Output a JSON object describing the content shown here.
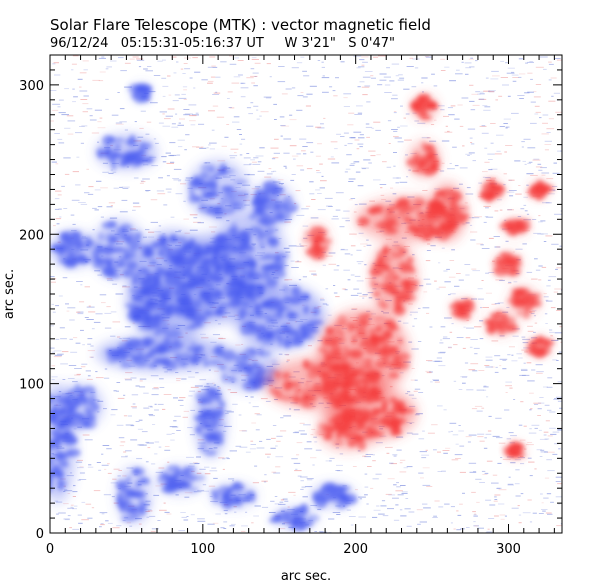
{
  "title": "Solar Flare Telescope (MTK) : vector magnetic field",
  "subtitle": "96/12/24   05:15:31-05:16:37 UT     W 3'21\"   S 0'47\"",
  "chart_data": {
    "type": "heatmap",
    "title": "Solar Flare Telescope (MTK) : vector magnetic field",
    "xlabel": "arc sec.",
    "ylabel": "arc sec.",
    "xlim": [
      0,
      335
    ],
    "ylim": [
      0,
      320
    ],
    "x_ticks": [
      0,
      100,
      200,
      300
    ],
    "y_ticks": [
      0,
      100,
      200,
      300
    ],
    "x_minor_step": 10,
    "y_minor_step": 10,
    "colors": {
      "negative": "#4a5cf0",
      "positive": "#f53e3e",
      "noise_neg": "#8090e0",
      "noise_pos": "#f0a0a0"
    },
    "negative_regions": [
      {
        "x": 105,
        "y": 170,
        "rx": 32,
        "ry": 30,
        "s": 1.0
      },
      {
        "x": 80,
        "y": 165,
        "rx": 28,
        "ry": 38,
        "s": 0.9
      },
      {
        "x": 150,
        "y": 145,
        "rx": 30,
        "ry": 22,
        "s": 1.0
      },
      {
        "x": 75,
        "y": 120,
        "rx": 45,
        "ry": 12,
        "s": 0.9
      },
      {
        "x": 130,
        "y": 185,
        "rx": 25,
        "ry": 30,
        "s": 0.8
      },
      {
        "x": 65,
        "y": 155,
        "rx": 15,
        "ry": 20,
        "s": 0.8
      },
      {
        "x": 15,
        "y": 190,
        "rx": 15,
        "ry": 12,
        "s": 0.9
      },
      {
        "x": 45,
        "y": 190,
        "rx": 18,
        "ry": 20,
        "s": 0.7
      },
      {
        "x": 110,
        "y": 230,
        "rx": 20,
        "ry": 20,
        "s": 0.7
      },
      {
        "x": 50,
        "y": 255,
        "rx": 20,
        "ry": 12,
        "s": 0.8
      },
      {
        "x": 105,
        "y": 75,
        "rx": 10,
        "ry": 25,
        "s": 0.9
      },
      {
        "x": 130,
        "y": 110,
        "rx": 20,
        "ry": 15,
        "s": 0.7
      },
      {
        "x": 5,
        "y": 60,
        "rx": 12,
        "ry": 40,
        "s": 0.8
      },
      {
        "x": 20,
        "y": 85,
        "rx": 15,
        "ry": 15,
        "s": 0.7
      },
      {
        "x": 185,
        "y": 25,
        "rx": 14,
        "ry": 8,
        "s": 0.8
      },
      {
        "x": 120,
        "y": 25,
        "rx": 15,
        "ry": 8,
        "s": 0.7
      },
      {
        "x": 55,
        "y": 25,
        "rx": 12,
        "ry": 20,
        "s": 0.6
      },
      {
        "x": 85,
        "y": 35,
        "rx": 15,
        "ry": 10,
        "s": 0.6
      },
      {
        "x": 60,
        "y": 295,
        "rx": 6,
        "ry": 6,
        "s": 0.5
      },
      {
        "x": 145,
        "y": 220,
        "rx": 15,
        "ry": 15,
        "s": 0.6
      },
      {
        "x": 160,
        "y": 10,
        "rx": 15,
        "ry": 8,
        "s": 0.5
      }
    ],
    "positive_regions": [
      {
        "x": 205,
        "y": 120,
        "rx": 30,
        "ry": 30,
        "s": 1.0
      },
      {
        "x": 180,
        "y": 100,
        "rx": 40,
        "ry": 18,
        "s": 0.9
      },
      {
        "x": 210,
        "y": 80,
        "rx": 30,
        "ry": 18,
        "s": 1.0
      },
      {
        "x": 225,
        "y": 170,
        "rx": 15,
        "ry": 25,
        "s": 0.9
      },
      {
        "x": 235,
        "y": 210,
        "rx": 35,
        "ry": 15,
        "s": 0.9
      },
      {
        "x": 260,
        "y": 215,
        "rx": 12,
        "ry": 20,
        "s": 0.9
      },
      {
        "x": 245,
        "y": 250,
        "rx": 10,
        "ry": 12,
        "s": 0.9
      },
      {
        "x": 245,
        "y": 285,
        "rx": 8,
        "ry": 8,
        "s": 0.9
      },
      {
        "x": 195,
        "y": 70,
        "rx": 20,
        "ry": 15,
        "s": 0.8
      },
      {
        "x": 175,
        "y": 195,
        "rx": 8,
        "ry": 12,
        "s": 0.6
      },
      {
        "x": 310,
        "y": 155,
        "rx": 10,
        "ry": 10,
        "s": 0.7
      },
      {
        "x": 300,
        "y": 180,
        "rx": 8,
        "ry": 8,
        "s": 0.7
      },
      {
        "x": 305,
        "y": 205,
        "rx": 8,
        "ry": 6,
        "s": 0.6
      },
      {
        "x": 320,
        "y": 125,
        "rx": 8,
        "ry": 6,
        "s": 0.6
      },
      {
        "x": 270,
        "y": 150,
        "rx": 8,
        "ry": 6,
        "s": 0.6
      },
      {
        "x": 290,
        "y": 230,
        "rx": 6,
        "ry": 8,
        "s": 0.6
      },
      {
        "x": 320,
        "y": 230,
        "rx": 6,
        "ry": 6,
        "s": 0.6
      },
      {
        "x": 295,
        "y": 140,
        "rx": 10,
        "ry": 8,
        "s": 0.6
      },
      {
        "x": 305,
        "y": 55,
        "rx": 5,
        "ry": 5,
        "s": 0.6
      }
    ]
  }
}
